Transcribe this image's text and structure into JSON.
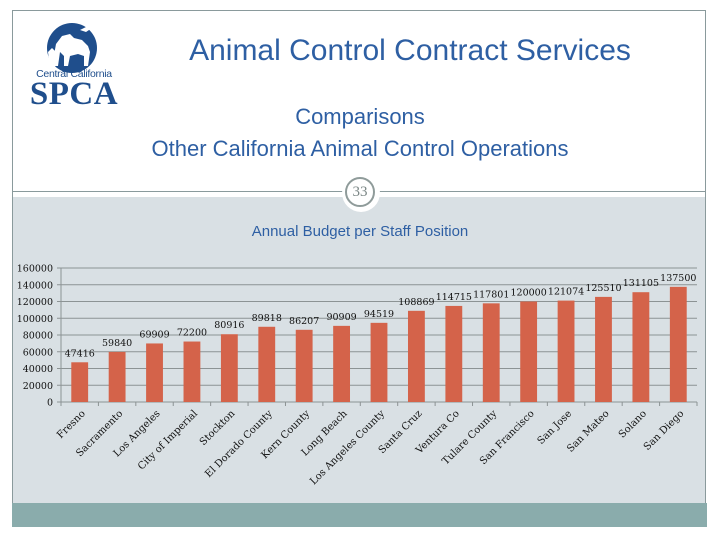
{
  "slide": {
    "title": "Animal Control Contract Services",
    "subtitle_line1": "Comparisons",
    "subtitle_line2": "Other California Animal Control Operations",
    "page_number": "33",
    "logo": {
      "top_text": "Central California",
      "main_text": "SPCA",
      "icon": "animals-silhouette-icon"
    }
  },
  "colors": {
    "title_blue": "#2e5fa3",
    "logo_blue": "#1f4e8c",
    "bar": "#d4634a",
    "chart_bg": "#d9e0e4",
    "footer_bar": "#8aacac"
  },
  "chart_data": {
    "type": "bar",
    "title": "Annual Budget per Staff Position",
    "xlabel": "",
    "ylabel": "",
    "ylim": [
      0,
      160000
    ],
    "yticks": [
      0,
      20000,
      40000,
      60000,
      80000,
      100000,
      120000,
      140000,
      160000
    ],
    "ytick_labels": [
      "0",
      "20000",
      "40000",
      "60000",
      "80000",
      "100000",
      "120000",
      "140000",
      "160000"
    ],
    "grid": true,
    "legend": "none",
    "categories": [
      "Fresno",
      "Sacramento",
      "Los Angeles",
      "City of Imperial",
      "Stockton",
      "El Dorado County",
      "Kern County",
      "Long Beach",
      "Los Angeles County",
      "Santa Cruz",
      "Ventura Co",
      "Tulare County",
      "San Francisco",
      "San Jose",
      "San Mateo",
      "Solano",
      "San Diego"
    ],
    "values": [
      47416,
      59840,
      69909,
      72200,
      80916,
      89818,
      86207,
      90909,
      94519,
      108869,
      114715,
      117801,
      120000,
      121074,
      125510,
      131105,
      137500
    ],
    "data_labels": [
      "47416",
      "59840",
      "69909",
      "72200",
      "80916",
      "89818",
      "86207",
      "90909",
      "94519",
      "108869",
      "114715",
      "117801",
      "120000",
      "121074",
      "125510",
      "131105",
      "137500"
    ]
  }
}
